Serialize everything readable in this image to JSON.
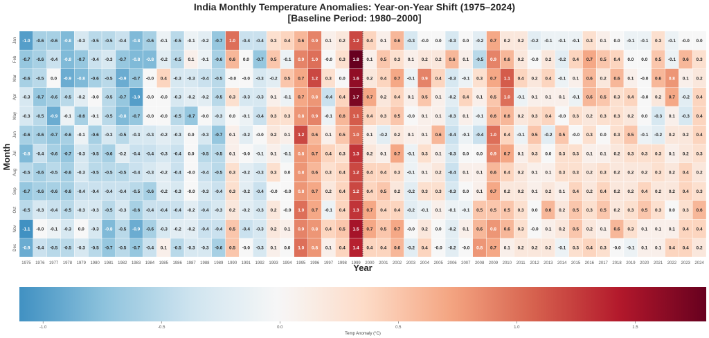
{
  "chart_data": {
    "type": "heatmap",
    "title_line1": "India Monthly Temperature Anomalies: Year-on-Year Shift (1975–2024)",
    "title_line2": "[Baseline Period: 1980–2000]",
    "xlabel": "Year",
    "ylabel": "Month",
    "colorbar_label": "Temp Anomaly (°C)",
    "colormap": "RdBu_r",
    "vmin": -1.1,
    "vmax": 1.8,
    "colorbar_ticks": [
      "-1.0",
      "-0.5",
      "0.0",
      "0.5",
      "1.0",
      "1.5"
    ],
    "colorbar_tick_values": [
      -1.0,
      -0.5,
      0.0,
      0.5,
      1.0,
      1.5
    ],
    "marker_line_year": "1999",
    "months": [
      "Jan",
      "Feb",
      "Mar",
      "Apr",
      "May",
      "Jun",
      "Jul",
      "Aug",
      "Sep",
      "Oct",
      "Nov",
      "Dec"
    ],
    "years": [
      "1975",
      "1976",
      "1977",
      "1978",
      "1979",
      "1980",
      "1981",
      "1982",
      "1983",
      "1984",
      "1985",
      "1986",
      "1987",
      "1988",
      "1989",
      "1990",
      "1991",
      "1992",
      "1993",
      "1994",
      "1995",
      "1996",
      "1997",
      "1998",
      "1999",
      "2000",
      "2001",
      "2002",
      "2003",
      "2004",
      "2005",
      "2006",
      "2007",
      "2008",
      "2009",
      "2010",
      "2011",
      "2012",
      "2013",
      "2014",
      "2015",
      "2016",
      "2017",
      "2018",
      "2019",
      "2020",
      "2021",
      "2022",
      "2023",
      "2024"
    ],
    "values": [
      [
        -1.0,
        -0.6,
        -0.6,
        -0.8,
        -0.3,
        -0.5,
        -0.5,
        -0.4,
        -0.8,
        -0.6,
        -0.1,
        -0.5,
        -0.1,
        -0.2,
        -0.7,
        1.0,
        -0.4,
        -0.4,
        0.3,
        0.4,
        0.6,
        0.9,
        0.1,
        0.2,
        1.2,
        0.4,
        0.1,
        0.6,
        -0.3,
        -0.0,
        0.0,
        -0.3,
        0.0,
        -0.2,
        0.7,
        0.2,
        0.2,
        -0.2,
        -0.1,
        -0.1,
        -0.1,
        0.3,
        0.1,
        0.0,
        -0.1,
        -0.1,
        0.3,
        -0.1,
        -0.0,
        0.0
      ],
      [
        -0.7,
        -0.6,
        -0.4,
        -0.8,
        -0.7,
        -0.4,
        -0.3,
        -0.7,
        -0.8,
        -0.8,
        -0.2,
        -0.5,
        0.1,
        -0.1,
        -0.6,
        0.6,
        0.0,
        -0.7,
        0.5,
        -0.1,
        0.9,
        1.0,
        -0.0,
        0.3,
        1.8,
        0.1,
        0.5,
        0.3,
        0.1,
        0.2,
        0.2,
        0.6,
        0.1,
        -0.5,
        0.9,
        0.6,
        0.2,
        -0.0,
        0.2,
        -0.2,
        0.4,
        0.7,
        0.5,
        0.4,
        0.0,
        0.0,
        0.5,
        -0.1,
        0.6,
        0.3
      ],
      [
        -0.6,
        -0.5,
        0.0,
        -0.9,
        -0.8,
        -0.6,
        -0.5,
        -0.9,
        -0.7,
        -0.0,
        0.4,
        -0.3,
        -0.3,
        -0.4,
        -0.5,
        -0.0,
        -0.0,
        -0.3,
        -0.2,
        0.5,
        0.7,
        1.2,
        0.3,
        0.0,
        1.6,
        0.2,
        0.4,
        0.7,
        -0.1,
        0.9,
        0.4,
        -0.3,
        -0.1,
        0.3,
        0.7,
        1.1,
        0.4,
        0.2,
        0.4,
        -0.1,
        0.1,
        0.6,
        0.2,
        0.6,
        0.1,
        -0.0,
        0.6,
        0.8,
        0.1,
        0.2
      ],
      [
        -0.3,
        -0.7,
        -0.6,
        -0.5,
        -0.2,
        -0.0,
        -0.5,
        -0.7,
        -1.0,
        -0.0,
        -0.0,
        -0.3,
        -0.2,
        -0.2,
        -0.5,
        0.3,
        -0.3,
        -0.3,
        0.1,
        -0.1,
        0.7,
        0.8,
        -0.4,
        0.4,
        1.7,
        0.7,
        0.2,
        0.4,
        0.1,
        0.5,
        0.1,
        -0.2,
        0.4,
        0.1,
        0.5,
        1.0,
        -0.1,
        0.1,
        0.1,
        0.1,
        -0.1,
        0.6,
        0.5,
        0.3,
        0.4,
        -0.0,
        0.2,
        0.7,
        -0.2,
        0.4
      ],
      [
        -0.3,
        -0.5,
        -0.9,
        -0.1,
        -0.6,
        -0.1,
        -0.5,
        -0.8,
        -0.7,
        -0.0,
        -0.0,
        -0.5,
        -0.7,
        -0.0,
        -0.3,
        0.0,
        -0.1,
        -0.4,
        0.3,
        0.3,
        0.8,
        0.9,
        -0.1,
        0.6,
        1.1,
        0.4,
        0.3,
        0.5,
        -0.0,
        0.1,
        0.1,
        -0.3,
        0.1,
        -0.1,
        0.6,
        0.6,
        0.2,
        0.3,
        0.4,
        -0.0,
        0.3,
        0.2,
        0.3,
        0.3,
        0.2,
        0.0,
        -0.3,
        0.1,
        -0.3,
        0.4
      ],
      [
        -0.6,
        -0.6,
        -0.7,
        -0.6,
        -0.1,
        -0.6,
        -0.3,
        -0.5,
        -0.3,
        -0.3,
        -0.2,
        -0.3,
        0.0,
        -0.3,
        -0.7,
        0.1,
        -0.2,
        -0.0,
        0.2,
        0.1,
        1.2,
        0.6,
        0.1,
        0.5,
        1.0,
        0.1,
        -0.2,
        0.2,
        0.1,
        0.1,
        0.6,
        -0.4,
        -0.1,
        -0.4,
        1.0,
        0.4,
        -0.1,
        0.5,
        -0.2,
        0.5,
        -0.0,
        0.3,
        0.0,
        0.3,
        0.5,
        -0.1,
        -0.2,
        0.2,
        0.2,
        0.4
      ],
      [
        -0.8,
        -0.4,
        -0.6,
        -0.7,
        -0.3,
        -0.5,
        -0.6,
        -0.2,
        -0.4,
        -0.4,
        -0.3,
        -0.4,
        0.0,
        -0.5,
        -0.5,
        0.1,
        -0.0,
        -0.1,
        0.1,
        -0.1,
        0.8,
        0.7,
        0.4,
        0.3,
        1.3,
        0.2,
        0.1,
        0.7,
        -0.1,
        0.3,
        0.1,
        -0.3,
        0.0,
        0.0,
        0.9,
        0.7,
        0.1,
        0.3,
        0.0,
        0.3,
        0.3,
        0.1,
        0.1,
        0.2,
        0.3,
        0.3,
        0.3,
        0.1,
        0.2,
        0.3
      ],
      [
        -0.5,
        -0.6,
        -0.5,
        -0.6,
        -0.3,
        -0.5,
        -0.5,
        -0.5,
        -0.4,
        -0.3,
        -0.2,
        -0.4,
        -0.0,
        -0.4,
        -0.5,
        0.3,
        -0.2,
        -0.3,
        0.3,
        0.0,
        0.8,
        0.6,
        0.3,
        0.4,
        1.2,
        0.4,
        0.4,
        0.3,
        -0.1,
        0.1,
        0.2,
        -0.4,
        0.1,
        0.1,
        0.6,
        0.4,
        0.2,
        0.1,
        0.1,
        0.3,
        0.3,
        0.2,
        0.3,
        0.2,
        0.2,
        0.2,
        0.3,
        0.2,
        0.4,
        0.2
      ],
      [
        -0.7,
        -0.6,
        -0.6,
        -0.6,
        -0.4,
        -0.4,
        -0.4,
        -0.4,
        -0.5,
        -0.6,
        -0.2,
        -0.3,
        -0.0,
        -0.3,
        -0.4,
        0.3,
        -0.2,
        -0.4,
        -0.0,
        -0.0,
        0.8,
        0.7,
        0.2,
        0.4,
        1.2,
        0.4,
        0.5,
        0.2,
        -0.2,
        0.3,
        0.3,
        -0.3,
        0.0,
        0.1,
        0.7,
        0.2,
        0.2,
        0.1,
        0.2,
        0.1,
        0.4,
        0.2,
        0.4,
        0.2,
        0.2,
        0.4,
        0.2,
        0.2,
        0.4,
        0.3
      ],
      [
        -0.5,
        -0.3,
        -0.4,
        -0.5,
        -0.3,
        -0.3,
        -0.5,
        -0.3,
        -0.6,
        -0.4,
        -0.4,
        -0.4,
        -0.2,
        -0.4,
        -0.3,
        0.2,
        -0.2,
        -0.3,
        0.2,
        -0.0,
        1.0,
        0.7,
        -0.1,
        0.4,
        1.3,
        0.7,
        0.4,
        0.4,
        -0.2,
        -0.1,
        0.1,
        -0.1,
        -0.1,
        0.5,
        0.5,
        0.5,
        0.3,
        0.0,
        0.6,
        0.2,
        0.5,
        0.3,
        0.5,
        0.2,
        0.3,
        0.5,
        0.3,
        0.0,
        0.3,
        0.6
      ],
      [
        -1.1,
        -0.0,
        -0.1,
        -0.3,
        0.0,
        -0.3,
        -0.8,
        -0.5,
        -0.9,
        -0.6,
        -0.3,
        -0.2,
        -0.2,
        -0.4,
        -0.4,
        0.5,
        -0.4,
        -0.3,
        0.2,
        0.1,
        0.9,
        0.8,
        0.4,
        0.5,
        1.5,
        0.7,
        0.5,
        0.7,
        -0.0,
        0.2,
        0.0,
        -0.2,
        0.1,
        0.6,
        0.8,
        0.6,
        0.3,
        -0.0,
        0.1,
        0.2,
        0.5,
        0.2,
        0.1,
        0.6,
        0.3,
        0.1,
        0.1,
        0.1,
        0.4,
        0.4
      ],
      [
        -0.9,
        -0.4,
        -0.5,
        -0.5,
        -0.3,
        -0.5,
        -0.7,
        -0.5,
        -0.7,
        -0.4,
        0.1,
        -0.5,
        -0.3,
        -0.3,
        -0.6,
        0.5,
        -0.0,
        -0.3,
        0.1,
        0.0,
        1.0,
        0.8,
        0.1,
        0.4,
        1.4,
        0.4,
        0.4,
        0.6,
        -0.2,
        0.4,
        -0.0,
        -0.2,
        -0.0,
        0.8,
        0.7,
        0.1,
        0.2,
        0.2,
        0.2,
        -0.1,
        0.3,
        0.4,
        0.3,
        -0.0,
        -0.1,
        0.1,
        0.1,
        0.4,
        0.4,
        0.2
      ]
    ]
  }
}
